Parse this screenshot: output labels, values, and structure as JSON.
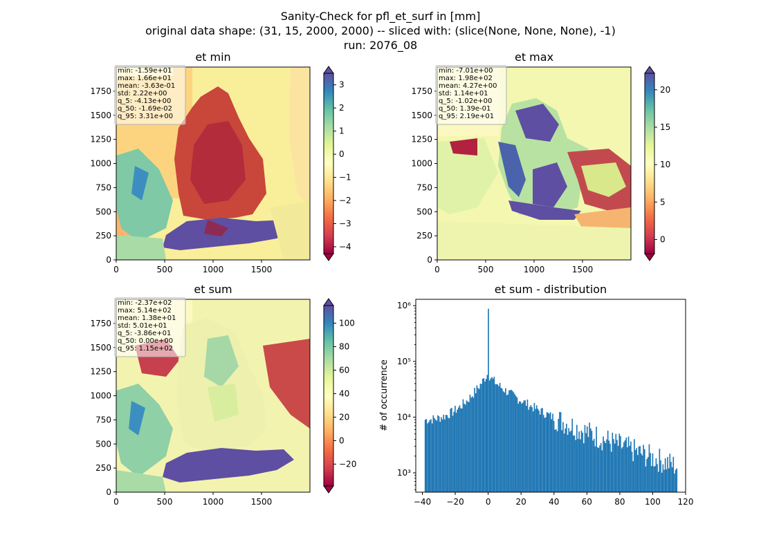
{
  "figure": {
    "title_lines": [
      "Sanity-Check for pfl_et_surf in [mm]",
      "original data shape: (31, 15, 2000, 2000) -- sliced with: (slice(None, None, None), -1)",
      "run: 2076_08"
    ]
  },
  "chart_data": [
    {
      "type": "heatmap",
      "title": "et min",
      "x_ticks": [
        "0",
        "500",
        "1000",
        "1500"
      ],
      "y_ticks": [
        "0",
        "250",
        "500",
        "750",
        "1000",
        "1250",
        "1500",
        "1750"
      ],
      "xlim": [
        0,
        2000
      ],
      "ylim": [
        0,
        2000
      ],
      "colormap": "Spectral",
      "colorbar": {
        "ticks": [
          "3",
          "2",
          "1",
          "0",
          "−1",
          "−2",
          "−3",
          "−4"
        ],
        "tick_values": [
          3,
          2,
          1,
          0,
          -1,
          -2,
          -3,
          -4
        ],
        "range": [
          -4.3,
          3.5
        ],
        "extend": "both"
      },
      "stats": [
        "min: -1.59e+01",
        "max: 1.66e+01",
        "mean: -3.63e-01",
        "std: 2.22e+00",
        "q_5: -4.13e+00",
        "q_50: -1.69e-02",
        "q_95: 3.31e+00"
      ]
    },
    {
      "type": "heatmap",
      "title": "et max",
      "x_ticks": [
        "0",
        "500",
        "1000",
        "1500"
      ],
      "y_ticks": [
        "0",
        "250",
        "500",
        "750",
        "1000",
        "1250",
        "1500",
        "1750"
      ],
      "xlim": [
        0,
        2000
      ],
      "ylim": [
        0,
        2000
      ],
      "colormap": "Spectral",
      "colorbar": {
        "ticks": [
          "20",
          "15",
          "10",
          "5",
          "0"
        ],
        "tick_values": [
          20,
          15,
          10,
          5,
          0
        ],
        "range": [
          -1.9,
          22.2
        ],
        "extend": "both"
      },
      "stats": [
        "min: -7.01e+00",
        "max: 1.98e+02",
        "mean: 4.27e+00",
        "std: 1.14e+01",
        "q_5: -1.02e+00",
        "q_50: 1.39e-01",
        "q_95: 2.19e+01"
      ]
    },
    {
      "type": "heatmap",
      "title": "et sum",
      "x_ticks": [
        "0",
        "500",
        "1000",
        "1500"
      ],
      "y_ticks": [
        "0",
        "250",
        "500",
        "750",
        "1000",
        "1250",
        "1500",
        "1750"
      ],
      "xlim": [
        0,
        2000
      ],
      "ylim": [
        0,
        2000
      ],
      "colormap": "Spectral",
      "colorbar": {
        "ticks": [
          "100",
          "80",
          "60",
          "40",
          "20",
          "0",
          "−20"
        ],
        "tick_values": [
          100,
          80,
          60,
          40,
          20,
          0,
          -20
        ],
        "range": [
          -38.6,
          115
        ],
        "extend": "both"
      },
      "stats": [
        "min: -2.37e+02",
        "max: 5.14e+02",
        "mean: 1.38e+01",
        "std: 5.01e+01",
        "q_5: -3.86e+01",
        "q_50: 0.00e+00",
        "q_95: 1.15e+02"
      ]
    },
    {
      "type": "bar",
      "title": "et sum - distribution",
      "ylabel": "# of occurrence",
      "xlabel": "",
      "yscale": "log",
      "xlim": [
        -44,
        120
      ],
      "ylim": [
        450,
        1300000
      ],
      "x_ticks": [
        "−40",
        "−20",
        "0",
        "20",
        "40",
        "60",
        "80",
        "100",
        "120"
      ],
      "x_tick_values": [
        -40,
        -20,
        0,
        20,
        40,
        60,
        80,
        100,
        120
      ],
      "y_ticks": [
        "10³",
        "10⁴",
        "10⁵",
        "10⁶"
      ],
      "y_tick_values": [
        1000,
        10000,
        100000,
        1000000
      ],
      "bin_range": [
        -38.6,
        115
      ],
      "bar_color": "#1f77b4",
      "shape": {
        "left_edge_count": 9000,
        "peak_center_count": 880000,
        "peak_shoulder_count": 62000,
        "right_edge_count": 1300
      }
    }
  ]
}
